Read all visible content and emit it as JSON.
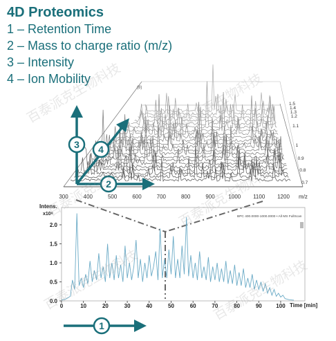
{
  "title": "4D Proteomics",
  "legend_lines": [
    "1 – Retention Time",
    "2 – Mass to charge ratio (m/z)",
    "3 – Intensity",
    "4 – Ion Mobility"
  ],
  "watermark_text": "百泰派克生物科技",
  "colors": {
    "teal": "#1a6f7a",
    "trace": "#6aaac6",
    "dash": "#666666"
  },
  "chart_data": [
    {
      "type": "area",
      "title": "",
      "xlabel": "m/z",
      "xlim": [
        300,
        1200
      ],
      "x_ticks": [
        "300",
        "400",
        "500",
        "600",
        "700",
        "800",
        "900",
        "1000",
        "1100",
        "1200"
      ],
      "ylabel": "",
      "mobility_ticks": [
        "1.5",
        "1.4",
        "1.3",
        "1.2",
        "1.1",
        "1",
        "0.9",
        "0.8",
        "0.7"
      ],
      "corner_label": "(8)",
      "axis_markers": [
        {
          "number": "3",
          "meaning": "Intensity"
        },
        {
          "number": "4",
          "meaning": "Ion Mobility"
        },
        {
          "number": "2",
          "meaning": "Mass to charge ratio (m/z)"
        }
      ]
    },
    {
      "type": "line",
      "title": "",
      "ylabel": "Intens.",
      "yunit": "x10⁸",
      "ylim": [
        0,
        2.4
      ],
      "y_ticks": [
        "0.0",
        "0.5",
        "1.0",
        "1.5",
        "2.0"
      ],
      "xlabel": "Time [min]",
      "xlim": [
        0,
        106
      ],
      "x_ticks": [
        "0",
        "10",
        "20",
        "30",
        "40",
        "50",
        "60",
        "70",
        "80",
        "90",
        "100"
      ],
      "legend": "BPC 400.0000-1000.0000 • All MS FullScan",
      "series": [
        {
          "values": [
            [
              0,
              0.02
            ],
            [
              2,
              0.05
            ],
            [
              4,
              0.12
            ],
            [
              5,
              0.55
            ],
            [
              6,
              0.3
            ],
            [
              7,
              2.3
            ],
            [
              8,
              0.4
            ],
            [
              9,
              0.6
            ],
            [
              10,
              0.35
            ],
            [
              11,
              0.7
            ],
            [
              12,
              0.45
            ],
            [
              13,
              1.05
            ],
            [
              14,
              0.5
            ],
            [
              15,
              0.8
            ],
            [
              16,
              0.55
            ],
            [
              17,
              1.25
            ],
            [
              18,
              0.6
            ],
            [
              19,
              0.9
            ],
            [
              20,
              0.5
            ],
            [
              21,
              1.5
            ],
            [
              22,
              0.6
            ],
            [
              23,
              1.0
            ],
            [
              24,
              0.55
            ],
            [
              25,
              1.2
            ],
            [
              26,
              0.6
            ],
            [
              27,
              0.95
            ],
            [
              28,
              0.5
            ],
            [
              29,
              1.45
            ],
            [
              30,
              0.6
            ],
            [
              31,
              1.0
            ],
            [
              32,
              0.55
            ],
            [
              33,
              0.9
            ],
            [
              34,
              1.6
            ],
            [
              35,
              0.6
            ],
            [
              36,
              1.1
            ],
            [
              37,
              0.5
            ],
            [
              38,
              1.0
            ],
            [
              39,
              0.6
            ],
            [
              40,
              1.2
            ],
            [
              41,
              0.65
            ],
            [
              42,
              0.9
            ],
            [
              43,
              1.3
            ],
            [
              44,
              0.55
            ],
            [
              45,
              1.9
            ],
            [
              46,
              0.6
            ],
            [
              47,
              1.1
            ],
            [
              48,
              0.6
            ],
            [
              49,
              1.35
            ],
            [
              50,
              0.7
            ],
            [
              51,
              1.7
            ],
            [
              52,
              0.6
            ],
            [
              53,
              1.1
            ],
            [
              54,
              0.6
            ],
            [
              55,
              1.45
            ],
            [
              56,
              0.7
            ],
            [
              57,
              2.2
            ],
            [
              58,
              0.65
            ],
            [
              59,
              1.2
            ],
            [
              60,
              0.6
            ],
            [
              61,
              1.0
            ],
            [
              62,
              0.55
            ],
            [
              63,
              1.3
            ],
            [
              64,
              0.6
            ],
            [
              65,
              0.9
            ],
            [
              66,
              0.55
            ],
            [
              67,
              1.15
            ],
            [
              68,
              0.5
            ],
            [
              69,
              0.9
            ],
            [
              70,
              0.55
            ],
            [
              71,
              1.0
            ],
            [
              72,
              0.5
            ],
            [
              73,
              0.85
            ],
            [
              74,
              0.5
            ],
            [
              75,
              1.05
            ],
            [
              76,
              0.45
            ],
            [
              77,
              0.8
            ],
            [
              78,
              0.45
            ],
            [
              79,
              0.95
            ],
            [
              80,
              0.4
            ],
            [
              81,
              0.75
            ],
            [
              82,
              0.4
            ],
            [
              83,
              0.85
            ],
            [
              84,
              0.35
            ],
            [
              85,
              0.6
            ],
            [
              86,
              0.35
            ],
            [
              87,
              0.7
            ],
            [
              88,
              0.3
            ],
            [
              89,
              0.55
            ],
            [
              90,
              0.3
            ],
            [
              91,
              0.5
            ],
            [
              92,
              0.25
            ],
            [
              93,
              0.45
            ],
            [
              94,
              0.2
            ],
            [
              95,
              0.35
            ],
            [
              96,
              0.15
            ],
            [
              97,
              0.3
            ],
            [
              98,
              0.12
            ],
            [
              99,
              0.2
            ],
            [
              100,
              0.1
            ],
            [
              101,
              0.15
            ],
            [
              102,
              0.06
            ],
            [
              104,
              0.03
            ],
            [
              106,
              0.02
            ]
          ]
        }
      ]
    }
  ],
  "time_arrow_number": "1"
}
